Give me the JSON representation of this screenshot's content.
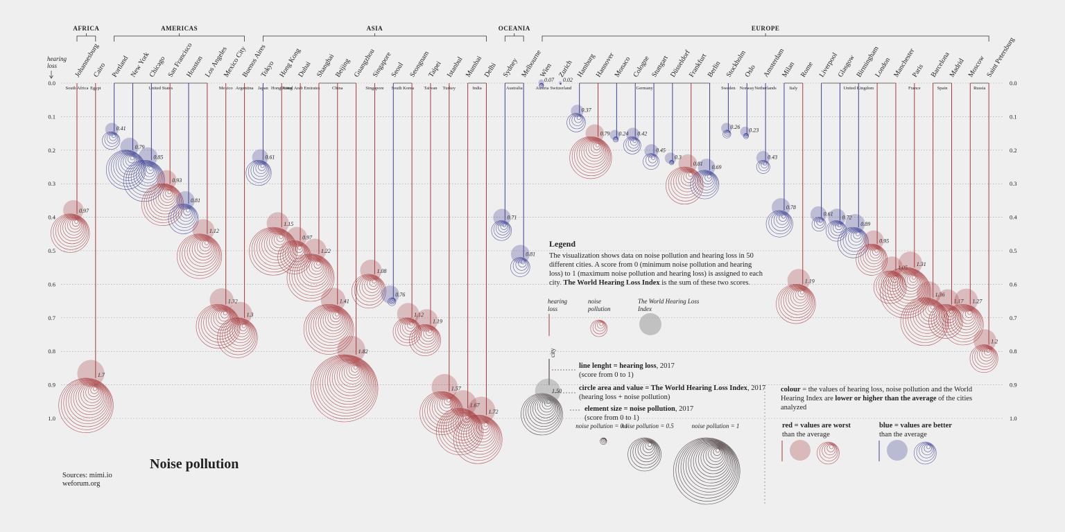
{
  "chart_data": {
    "type": "drop",
    "title": "Noise pollution",
    "sources": [
      "Sources: mimi.io",
      "weforum.org"
    ],
    "ylabel": "hearing loss",
    "ylim": [
      0,
      1
    ],
    "yticks": [
      {
        "value": 0,
        "label": "0.0"
      },
      0.1,
      0.2,
      0.3,
      0.4,
      0.5,
      0.6,
      0.7,
      0.8,
      0.9,
      {
        "value": 1,
        "label": "1.0"
      }
    ],
    "grid": true,
    "colors": {
      "worse": "#a63a3c",
      "better": "#3d4190",
      "legend": "#3b2b2b"
    },
    "cities": [
      {
        "name": "Johannesburg",
        "country": "South Africa",
        "region": "AFRICA",
        "hearing_loss": 0.39,
        "index": 0.97,
        "color": "#a63a3c"
      },
      {
        "name": "Cairo",
        "country": "Egypt",
        "region": "AFRICA",
        "hearing_loss": 0.88,
        "index": 1.7,
        "color": "#a63a3c"
      },
      {
        "name": "Portland",
        "country": "United States",
        "region": "AMERICAS",
        "hearing_loss": 0.145,
        "index": 0.41,
        "color": "#3d4190"
      },
      {
        "name": "New York",
        "country": "United States",
        "region": "AMERICAS",
        "hearing_loss": 0.2,
        "index": 0.79,
        "color": "#3d4190"
      },
      {
        "name": "Chicago",
        "country": "United States",
        "region": "AMERICAS",
        "hearing_loss": 0.23,
        "index": 0.85,
        "color": "#3d4190"
      },
      {
        "name": "San Francisco",
        "country": "United States",
        "region": "AMERICAS",
        "hearing_loss": 0.3,
        "index": 0.93,
        "color": "#a63a3c"
      },
      {
        "name": "Houston",
        "country": "United States",
        "region": "AMERICAS",
        "hearing_loss": 0.36,
        "index": 0.81,
        "color": "#3d4190"
      },
      {
        "name": "Los Angeles",
        "country": "United States",
        "region": "AMERICAS",
        "hearing_loss": 0.45,
        "index": 1.12,
        "color": "#a63a3c"
      },
      {
        "name": "Mexico City",
        "country": "Mexico",
        "region": "AMERICAS",
        "hearing_loss": 0.66,
        "index": 1.32,
        "color": "#a63a3c"
      },
      {
        "name": "Buenos Aires",
        "country": "Argentina",
        "region": "AMERICAS",
        "hearing_loss": 0.7,
        "index": 1.3,
        "color": "#a63a3c"
      },
      {
        "name": "Tokyo",
        "country": "Japan",
        "region": "ASIA",
        "hearing_loss": 0.23,
        "index": 0.61,
        "color": "#3d4190"
      },
      {
        "name": "Hong Kong",
        "country": "Hong Kong",
        "region": "ASIA",
        "hearing_loss": 0.43,
        "index": 1.15,
        "color": "#a63a3c"
      },
      {
        "name": "Dubai",
        "country": "United Arab Emirates",
        "region": "ASIA",
        "hearing_loss": 0.47,
        "index": 0.97,
        "color": "#a63a3c"
      },
      {
        "name": "Shanghai",
        "country": "China",
        "region": "ASIA",
        "hearing_loss": 0.51,
        "index": 1.22,
        "color": "#a63a3c"
      },
      {
        "name": "Beijing",
        "country": "China",
        "region": "ASIA",
        "hearing_loss": 0.66,
        "index": 1.41,
        "color": "#a63a3c"
      },
      {
        "name": "Guangzhou",
        "country": "China",
        "region": "ASIA",
        "hearing_loss": 0.81,
        "index": 1.82,
        "color": "#a63a3c"
      },
      {
        "name": "Singapore",
        "country": "Singapore",
        "region": "ASIA",
        "hearing_loss": 0.57,
        "index": 1.08,
        "color": "#a63a3c"
      },
      {
        "name": "Seoul",
        "country": "South Korea",
        "region": "ASIA",
        "hearing_loss": 0.64,
        "index": 0.76,
        "color": "#3d4190"
      },
      {
        "name": "Seongnam",
        "country": "South Korea",
        "region": "ASIA",
        "hearing_loss": 0.7,
        "index": 1.12,
        "color": "#a63a3c"
      },
      {
        "name": "Taipei",
        "country": "Taiwan",
        "region": "ASIA",
        "hearing_loss": 0.72,
        "index": 1.19,
        "color": "#a63a3c"
      },
      {
        "name": "Istanbul",
        "country": "Turkey",
        "region": "ASIA",
        "hearing_loss": 0.92,
        "index": 1.57,
        "color": "#a63a3c"
      },
      {
        "name": "Mumbai",
        "country": "India",
        "region": "ASIA",
        "hearing_loss": 0.97,
        "index": 1.67,
        "color": "#a63a3c"
      },
      {
        "name": "Delhi",
        "country": "India",
        "region": "ASIA",
        "hearing_loss": 0.99,
        "index": 1.72,
        "color": "#a63a3c"
      },
      {
        "name": "Sydney",
        "country": "Australia",
        "region": "OCEANIA",
        "hearing_loss": 0.41,
        "index": 0.71,
        "color": "#3d4190"
      },
      {
        "name": "Melbourne",
        "country": "Australia",
        "region": "OCEANIA",
        "hearing_loss": 0.52,
        "index": 0.81,
        "color": "#3d4190"
      },
      {
        "name": "Wien",
        "country": "Austria",
        "region": "EUROPE",
        "hearing_loss": 0,
        "index": 0.07,
        "color": "#3d4190"
      },
      {
        "name": "Zurich",
        "country": "Switzerland",
        "region": "EUROPE",
        "hearing_loss": 0,
        "index": 0.02,
        "color": "#3d4190"
      },
      {
        "name": "Hamburg",
        "country": "Germany",
        "region": "EUROPE",
        "hearing_loss": 0.09,
        "index": 0.37,
        "color": "#3d4190"
      },
      {
        "name": "Hannover",
        "country": "Germany",
        "region": "EUROPE",
        "hearing_loss": 0.16,
        "index": 0.79,
        "color": "#a63a3c"
      },
      {
        "name": "Monaco",
        "country": null,
        "region": "EUROPE",
        "hearing_loss": 0.16,
        "index": 0.24,
        "color": "#3d4190"
      },
      {
        "name": "Cologne",
        "country": "Germany",
        "region": "EUROPE",
        "hearing_loss": 0.16,
        "index": 0.42,
        "color": "#3d4190"
      },
      {
        "name": "Stuttgart",
        "country": "Germany",
        "region": "EUROPE",
        "hearing_loss": 0.21,
        "index": 0.45,
        "color": "#3d4190"
      },
      {
        "name": "Düsseldorf",
        "country": "Germany",
        "region": "EUROPE",
        "hearing_loss": 0.23,
        "index": 0.3,
        "color": "#3d4190"
      },
      {
        "name": "Frankfurt",
        "country": "Germany",
        "region": "EUROPE",
        "hearing_loss": 0.25,
        "index": 0.81,
        "color": "#a63a3c"
      },
      {
        "name": "Berlin",
        "country": "Germany",
        "region": "EUROPE",
        "hearing_loss": 0.26,
        "index": 0.69,
        "color": "#3d4190"
      },
      {
        "name": "Stockholm",
        "country": "Sweden",
        "region": "EUROPE",
        "hearing_loss": 0.14,
        "index": 0.26,
        "color": "#3d4190"
      },
      {
        "name": "Oslo",
        "country": "Norway",
        "region": "EUROPE",
        "hearing_loss": 0.15,
        "index": 0.23,
        "color": "#3d4190"
      },
      {
        "name": "Amsterdam",
        "country": "Netherlands",
        "region": "EUROPE",
        "hearing_loss": 0.23,
        "index": 0.43,
        "color": "#3d4190"
      },
      {
        "name": "Milan",
        "country": "Italy",
        "region": "EUROPE",
        "hearing_loss": 0.38,
        "index": 0.78,
        "color": "#3d4190"
      },
      {
        "name": "Rome",
        "country": "Italy",
        "region": "EUROPE",
        "hearing_loss": 0.6,
        "index": 1.19,
        "color": "#a63a3c"
      },
      {
        "name": "Liverpool",
        "country": "United Kingdom",
        "region": "EUROPE",
        "hearing_loss": 0.4,
        "index": 0.61,
        "color": "#3d4190"
      },
      {
        "name": "Glasgow",
        "country": "United Kingdom",
        "region": "EUROPE",
        "hearing_loss": 0.41,
        "index": 0.72,
        "color": "#3d4190"
      },
      {
        "name": "Birmingham",
        "country": "United Kingdom",
        "region": "EUROPE",
        "hearing_loss": 0.43,
        "index": 0.89,
        "color": "#3d4190"
      },
      {
        "name": "London",
        "country": "United Kingdom",
        "region": "EUROPE",
        "hearing_loss": 0.48,
        "index": 0.95,
        "color": "#a63a3c"
      },
      {
        "name": "Manchester",
        "country": "United Kingdom",
        "region": "EUROPE",
        "hearing_loss": 0.56,
        "index": 1.05,
        "color": "#a63a3c"
      },
      {
        "name": "Paris",
        "country": "France",
        "region": "EUROPE",
        "hearing_loss": 0.55,
        "index": 1.31,
        "color": "#a63a3c"
      },
      {
        "name": "Barcelona",
        "country": "Spain",
        "region": "EUROPE",
        "hearing_loss": 0.64,
        "index": 1.36,
        "color": "#a63a3c"
      },
      {
        "name": "Madrid",
        "country": "Spain",
        "region": "EUROPE",
        "hearing_loss": 0.66,
        "index": 1.17,
        "color": "#a63a3c"
      },
      {
        "name": "Moscow",
        "country": "Russia",
        "region": "EUROPE",
        "hearing_loss": 0.66,
        "index": 1.27,
        "color": "#a63a3c"
      },
      {
        "name": "Saint Petersburg",
        "country": "Russia",
        "region": "EUROPE",
        "hearing_loss": 0.78,
        "index": 1.2,
        "color": "#a63a3c"
      }
    ],
    "legend": {
      "title": "Legend",
      "description": [
        "The visualization shows data on noise pollution and hearing loss in 50 different cities. A score from 0 (minimum noise pollution and hearing loss) to 1 (maximum noise pollution and hearing loss) is assigned to each city. ",
        "The World Hearing Loss Index",
        " is the sum of these two scores."
      ],
      "items": {
        "hearing_loss": "hearing loss",
        "noise_pollution": "noise pollution",
        "index": "The World Hearing Loss Index"
      },
      "city": "city",
      "notes": [
        {
          "bold": "line lenght = hearing loss",
          "rest": ", 2017",
          "sub": "(score from 0 to 1)"
        },
        {
          "bold": "circle area and value = The World Hearing Loss Index",
          "rest": ", 2017",
          "sub": "(hearing loss + noise pollution)"
        },
        {
          "bold": "element size = noise pollution",
          "rest": ", 2017",
          "sub": "(score from 0 to 1)"
        }
      ],
      "example": {
        "value": 1.5,
        "label": "1.50"
      },
      "samples": [
        {
          "label": "noise pollution = 0.1",
          "value": 0.1
        },
        {
          "label": "noise pollution = 0.5",
          "value": 0.5
        },
        {
          "label": "noise pollution = 1",
          "value": 1
        }
      ],
      "colour_note": [
        "colour",
        " = the values of hearing loss, noise pollution and the World Hearing Index are ",
        "lower or higher than the average",
        " of the cities analyzed"
      ],
      "red": {
        "bold": "red = values are worst",
        "rest": "than the average"
      },
      "blue": {
        "bold": "blue = values are better",
        "rest": "than the average"
      }
    }
  }
}
